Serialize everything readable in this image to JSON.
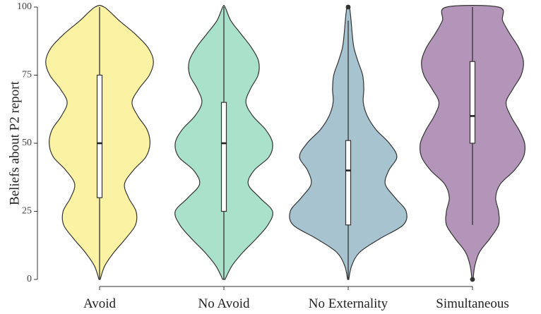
{
  "chart_data": {
    "type": "violin",
    "xlabel": "",
    "ylabel": "Beliefs about P2 report",
    "ylim": [
      0,
      100
    ],
    "yticks": [
      0,
      25,
      50,
      75,
      100
    ],
    "categories": [
      "Avoid",
      "No Avoid",
      "No Externality",
      "Simultaneous"
    ],
    "series": [
      {
        "category": "Avoid",
        "fill": "#FBF3A3",
        "box": {
          "min": 0,
          "q1": 30,
          "median": 50,
          "q3": 75,
          "max": 100
        },
        "outliers": [],
        "density": {
          "y": [
            0,
            5,
            10,
            15,
            20,
            25,
            30,
            35,
            40,
            45,
            50,
            55,
            60,
            65,
            70,
            75,
            80,
            85,
            90,
            95,
            100
          ],
          "half_width": [
            0.01,
            0.09,
            0.25,
            0.45,
            0.62,
            0.63,
            0.5,
            0.43,
            0.58,
            0.8,
            0.87,
            0.82,
            0.66,
            0.56,
            0.68,
            0.86,
            0.93,
            0.84,
            0.62,
            0.34,
            0.08
          ]
        }
      },
      {
        "category": "No Avoid",
        "fill": "#A9E1CA",
        "box": {
          "min": 0,
          "q1": 25,
          "median": 50,
          "q3": 65,
          "max": 100
        },
        "outliers": [],
        "density": {
          "y": [
            0,
            5,
            10,
            15,
            20,
            25,
            30,
            35,
            40,
            45,
            50,
            55,
            60,
            65,
            70,
            75,
            80,
            85,
            90,
            95,
            100
          ],
          "half_width": [
            0.02,
            0.14,
            0.33,
            0.56,
            0.76,
            0.84,
            0.62,
            0.42,
            0.52,
            0.78,
            0.84,
            0.72,
            0.5,
            0.38,
            0.46,
            0.59,
            0.6,
            0.48,
            0.3,
            0.12,
            0.02
          ]
        }
      },
      {
        "category": "No Externality",
        "fill": "#A8C3D0",
        "box": {
          "min": 0,
          "q1": 20,
          "median": 40,
          "q3": 51,
          "max": 95
        },
        "outliers": [
          100
        ],
        "density": {
          "y": [
            0,
            5,
            10,
            15,
            20,
            25,
            30,
            35,
            40,
            45,
            50,
            55,
            60,
            65,
            70,
            75,
            80,
            85,
            90,
            95,
            98,
            100
          ],
          "half_width": [
            0.01,
            0.06,
            0.2,
            0.55,
            0.95,
            1.0,
            0.81,
            0.64,
            0.7,
            0.84,
            0.71,
            0.48,
            0.33,
            0.26,
            0.27,
            0.25,
            0.17,
            0.1,
            0.07,
            0.05,
            0.035,
            0.02
          ]
        }
      },
      {
        "category": "Simultaneous",
        "fill": "#B295B8",
        "box": {
          "min": 20,
          "q1": 50,
          "median": 60,
          "q3": 80,
          "max": 100
        },
        "outliers": [
          0
        ],
        "density": {
          "y": [
            0,
            5,
            10,
            15,
            20,
            25,
            30,
            35,
            40,
            45,
            50,
            55,
            60,
            65,
            70,
            75,
            80,
            85,
            90,
            95,
            100
          ],
          "half_width": [
            0.01,
            0.04,
            0.12,
            0.3,
            0.45,
            0.45,
            0.4,
            0.48,
            0.72,
            0.88,
            0.9,
            0.8,
            0.66,
            0.58,
            0.7,
            0.84,
            0.88,
            0.8,
            0.65,
            0.52,
            0.45
          ]
        }
      }
    ]
  }
}
